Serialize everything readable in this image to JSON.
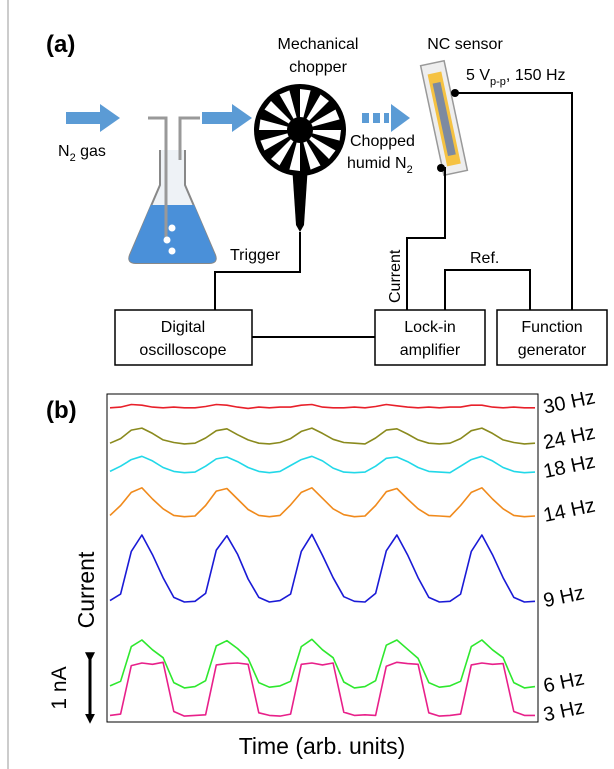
{
  "diagram": {
    "panel_label": "(a)",
    "gas": [
      "N",
      "2",
      " gas"
    ],
    "chopper": [
      "Mechanical",
      "chopper"
    ],
    "sensor": "NC sensor",
    "drive": [
      "5 V",
      "p-p",
      ", 150 Hz"
    ],
    "chopped": [
      "Chopped",
      "humid N",
      "2"
    ],
    "trigger": "Trigger",
    "current": "Current",
    "ref": "Ref.",
    "oscilloscope": [
      "Digital",
      "oscilloscope"
    ],
    "lockin": [
      "Lock-in",
      "amplifier"
    ],
    "generator": [
      "Function",
      "generator"
    ]
  },
  "chart_data": {
    "type": "line",
    "panel_label": "(b)",
    "x_label": "Time (arb. units)",
    "y_label": "Current",
    "scale_bar": {
      "value": 1,
      "label": "1 nA"
    },
    "ylim": [
      0,
      5
    ],
    "series": [
      {
        "name": "30 Hz",
        "color": "#e8202a",
        "values": [
          4.79,
          4.8,
          4.84,
          4.83,
          4.8,
          4.79,
          4.8,
          4.79,
          4.79,
          4.81,
          4.84,
          4.83,
          4.8,
          4.78,
          4.8,
          4.79,
          4.8,
          4.8,
          4.83,
          4.84,
          4.8,
          4.79,
          4.79,
          4.8,
          4.79,
          4.81,
          4.84,
          4.82,
          4.8,
          4.79,
          4.8,
          4.79,
          4.8,
          4.8,
          4.83,
          4.83,
          4.8,
          4.79,
          4.8,
          4.79,
          4.79
        ]
      },
      {
        "name": "24 Hz",
        "color": "#8a8a1e",
        "values": [
          4.25,
          4.32,
          4.45,
          4.48,
          4.4,
          4.3,
          4.26,
          4.24,
          4.25,
          4.33,
          4.44,
          4.47,
          4.38,
          4.3,
          4.25,
          4.24,
          4.26,
          4.32,
          4.43,
          4.48,
          4.4,
          4.31,
          4.26,
          4.25,
          4.24,
          4.33,
          4.45,
          4.47,
          4.39,
          4.3,
          4.25,
          4.24,
          4.25,
          4.32,
          4.44,
          4.48,
          4.4,
          4.3,
          4.26,
          4.24,
          4.25
        ]
      },
      {
        "name": "18 Hz",
        "color": "#22d8e8",
        "values": [
          3.82,
          3.9,
          4.0,
          4.05,
          3.98,
          3.88,
          3.82,
          3.8,
          3.81,
          3.9,
          4.01,
          4.04,
          3.97,
          3.88,
          3.82,
          3.8,
          3.82,
          3.91,
          4.0,
          4.05,
          3.98,
          3.87,
          3.81,
          3.8,
          3.81,
          3.9,
          4.02,
          4.04,
          3.97,
          3.88,
          3.82,
          3.81,
          3.8,
          3.9,
          4.0,
          4.05,
          3.98,
          3.88,
          3.82,
          3.8,
          3.81
        ]
      },
      {
        "name": "14 Hz",
        "color": "#f08a1c",
        "values": [
          3.15,
          3.3,
          3.5,
          3.57,
          3.4,
          3.25,
          3.15,
          3.13,
          3.14,
          3.3,
          3.52,
          3.56,
          3.4,
          3.24,
          3.15,
          3.13,
          3.15,
          3.31,
          3.5,
          3.57,
          3.41,
          3.25,
          3.16,
          3.13,
          3.14,
          3.3,
          3.51,
          3.56,
          3.4,
          3.25,
          3.15,
          3.14,
          3.13,
          3.3,
          3.5,
          3.57,
          3.4,
          3.25,
          3.15,
          3.13,
          3.14
        ]
      },
      {
        "name": "9 Hz",
        "color": "#1a1ad6",
        "values": [
          1.85,
          1.95,
          2.6,
          2.85,
          2.55,
          2.2,
          1.9,
          1.83,
          1.84,
          1.96,
          2.62,
          2.84,
          2.56,
          2.18,
          1.9,
          1.83,
          1.85,
          1.95,
          2.6,
          2.86,
          2.54,
          2.2,
          1.91,
          1.84,
          1.83,
          1.96,
          2.61,
          2.85,
          2.55,
          2.2,
          1.9,
          1.83,
          1.84,
          1.95,
          2.6,
          2.85,
          2.55,
          2.2,
          1.9,
          1.83,
          1.84
        ]
      },
      {
        "name": "6 Hz",
        "color": "#2ee82e",
        "values": [
          0.55,
          0.62,
          1.15,
          1.25,
          1.1,
          0.98,
          0.6,
          0.52,
          0.54,
          0.63,
          1.16,
          1.24,
          1.12,
          0.97,
          0.6,
          0.53,
          0.55,
          0.62,
          1.15,
          1.26,
          1.1,
          0.98,
          0.61,
          0.52,
          0.54,
          0.63,
          1.17,
          1.25,
          1.11,
          0.97,
          0.6,
          0.53,
          0.55,
          0.62,
          1.15,
          1.25,
          1.1,
          0.98,
          0.6,
          0.52,
          0.54
        ]
      },
      {
        "name": "3 Hz",
        "color": "#e8208a",
        "values": [
          0.1,
          0.12,
          0.86,
          0.9,
          0.88,
          0.91,
          0.16,
          0.09,
          0.1,
          0.11,
          0.87,
          0.89,
          0.9,
          0.88,
          0.14,
          0.1,
          0.09,
          0.12,
          0.88,
          0.9,
          0.87,
          0.9,
          0.15,
          0.1,
          0.11,
          0.1,
          0.85,
          0.91,
          0.89,
          0.88,
          0.14,
          0.09,
          0.1,
          0.12,
          0.87,
          0.9,
          0.88,
          0.89,
          0.16,
          0.1,
          0.1
        ]
      }
    ]
  }
}
